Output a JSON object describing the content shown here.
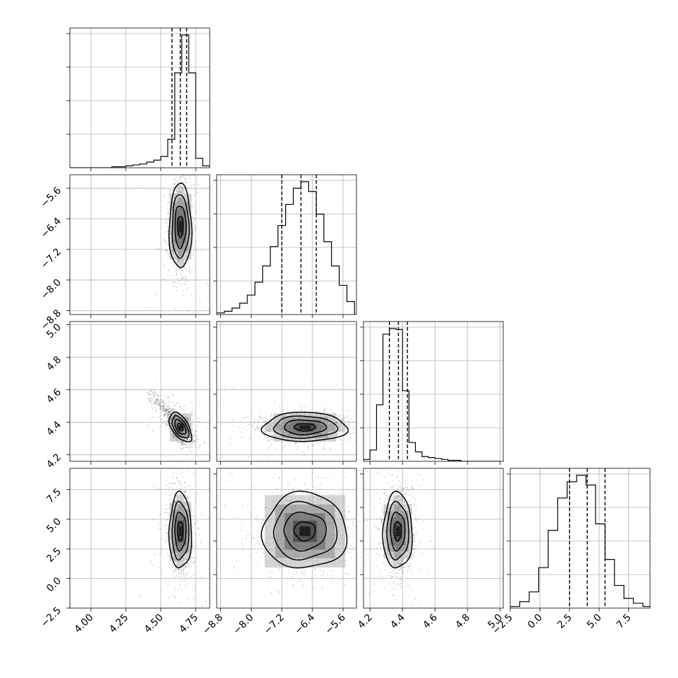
{
  "chart_data": {
    "type": "corner",
    "title": "",
    "parameters": [
      "",
      "",
      "",
      ""
    ],
    "grid": true,
    "ranges": [
      [
        3.85,
        4.85
      ],
      [
        -8.9,
        -5.25
      ],
      [
        4.16,
        5.02
      ],
      [
        -2.5,
        9.3
      ]
    ],
    "ticks": [
      [
        4.0,
        4.25,
        4.5,
        4.75
      ],
      [
        -8.8,
        -8.0,
        -7.2,
        -6.4,
        -5.6
      ],
      [
        4.2,
        4.4,
        4.6,
        4.8,
        5.0
      ],
      [
        -2.5,
        0.0,
        2.5,
        5.0,
        7.5
      ]
    ],
    "tick_labels": [
      [
        "4.00",
        "4.25",
        "4.50",
        "4.75"
      ],
      [
        "−8.8",
        "−8.0",
        "−7.2",
        "−6.4",
        "−5.6"
      ],
      [
        "4.2",
        "4.4",
        "4.6",
        "4.8",
        "5.0"
      ],
      [
        "−2.5",
        "0.0",
        "2.5",
        "5.0",
        "7.5"
      ]
    ],
    "quantiles": [
      [
        4.58,
        4.64,
        4.685
      ],
      [
        -7.2,
        -6.7,
        -6.3
      ],
      [
        4.32,
        4.375,
        4.43
      ],
      [
        2.5,
        4.0,
        5.5
      ]
    ],
    "histograms": [
      {
        "bin_edges": [
          3.85,
          3.9,
          3.95,
          4.0,
          4.05,
          4.1,
          4.15,
          4.2,
          4.25,
          4.3,
          4.35,
          4.4,
          4.45,
          4.5,
          4.55,
          4.6,
          4.65,
          4.7,
          4.75,
          4.8,
          4.85
        ],
        "counts": [
          0,
          0,
          0,
          0,
          0,
          0,
          1,
          1,
          2,
          3,
          4,
          6,
          8,
          12,
          30,
          100,
          140,
          100,
          10,
          2
        ]
      },
      {
        "bin_edges": [
          -8.9,
          -8.7,
          -8.5,
          -8.3,
          -8.1,
          -7.9,
          -7.7,
          -7.5,
          -7.3,
          -7.1,
          -6.9,
          -6.7,
          -6.5,
          -6.3,
          -6.1,
          -5.9,
          -5.7,
          -5.5,
          -5.3
        ],
        "counts": [
          1,
          2,
          4,
          7,
          12,
          20,
          30,
          42,
          55,
          68,
          78,
          82,
          76,
          62,
          45,
          30,
          18,
          8
        ]
      },
      {
        "bin_edges": [
          4.16,
          4.2,
          4.24,
          4.28,
          4.32,
          4.36,
          4.4,
          4.44,
          4.48,
          4.52,
          4.56,
          4.6,
          4.64,
          4.68,
          4.72,
          4.76,
          4.8,
          4.84,
          4.88,
          4.92,
          4.96,
          5.0
        ],
        "counts": [
          2,
          12,
          60,
          135,
          141,
          140,
          75,
          20,
          10,
          5,
          4,
          3,
          2,
          1,
          1,
          0,
          0,
          0,
          0,
          0,
          0
        ]
      },
      {
        "bin_edges": [
          -2.5,
          -1.7,
          -0.9,
          -0.1,
          0.7,
          1.5,
          2.3,
          3.1,
          3.9,
          4.7,
          5.5,
          6.3,
          7.1,
          7.9,
          8.7,
          9.5
        ],
        "counts": [
          1,
          4,
          10,
          25,
          48,
          68,
          78,
          82,
          76,
          52,
          30,
          14,
          6,
          3,
          1
        ]
      }
    ],
    "scatter_2d": [
      {
        "row": 1,
        "col": 0,
        "mean": [
          4.64,
          -6.6
        ],
        "sd": [
          0.04,
          0.55
        ],
        "corr": 0.0
      },
      {
        "row": 2,
        "col": 0,
        "mean": [
          4.64,
          4.37
        ],
        "sd": [
          0.04,
          0.045
        ],
        "corr": -0.55
      },
      {
        "row": 2,
        "col": 1,
        "mean": [
          -6.6,
          4.37
        ],
        "sd": [
          0.55,
          0.045
        ],
        "corr": 0.0
      },
      {
        "row": 3,
        "col": 0,
        "mean": [
          4.64,
          4.0
        ],
        "sd": [
          0.04,
          1.6
        ],
        "corr": 0.0
      },
      {
        "row": 3,
        "col": 1,
        "mean": [
          -6.6,
          4.0
        ],
        "sd": [
          0.55,
          1.6
        ],
        "corr": 0.0
      },
      {
        "row": 3,
        "col": 2,
        "mean": [
          4.37,
          4.0
        ],
        "sd": [
          0.045,
          1.6
        ],
        "corr": 0.0
      }
    ],
    "contour_levels_sigma": [
      0.5,
      1.0,
      1.5,
      2.0
    ]
  }
}
